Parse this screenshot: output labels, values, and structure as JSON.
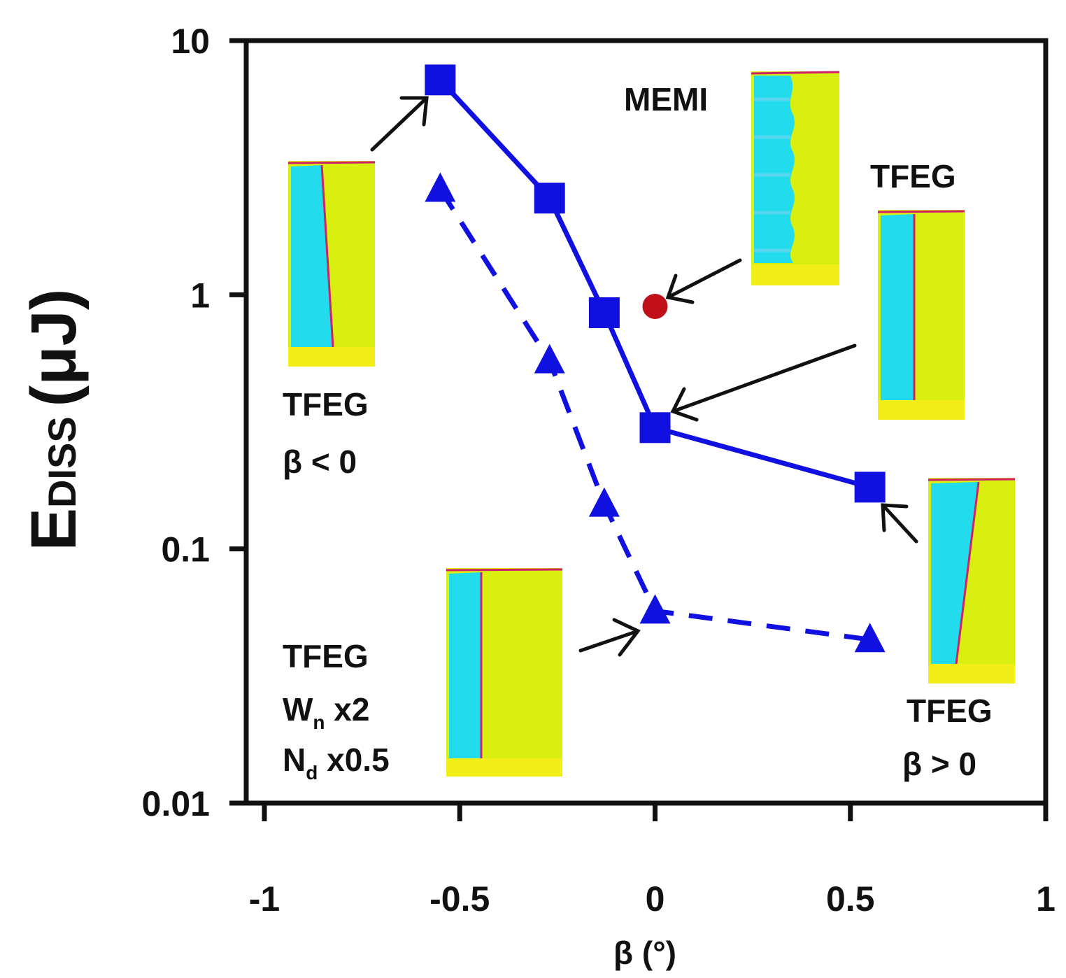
{
  "chart_data": {
    "type": "line",
    "x_scale": "linear",
    "y_scale": "log",
    "xlim": [
      -1,
      1
    ],
    "ylim": [
      0.01,
      10
    ],
    "x_ticks": [
      -1,
      -0.5,
      0,
      0.5,
      1
    ],
    "x_tick_labels": [
      "-1",
      "-0.5",
      "0",
      "0.5",
      "1"
    ],
    "y_ticks": [
      0.01,
      0.1,
      1,
      10
    ],
    "y_tick_labels": [
      "0.01",
      "0.1",
      "1",
      "10"
    ],
    "xlabel": "β (°)",
    "ylabel": {
      "main": "E",
      "sub": "DISS",
      "unit": "(μJ)"
    },
    "grid": false,
    "colors": {
      "series_blue": "#1010e0",
      "memi_red": "#c0101a",
      "cyan": "#22dcee",
      "lime": "#d8ef10",
      "yellow": "#f2ee18",
      "magenta": "#d0206a",
      "axis": "#111111"
    },
    "series": [
      {
        "name": "TFEG",
        "style": "solid",
        "marker": "square",
        "x": [
          -0.55,
          -0.27,
          -0.13,
          0.0,
          0.55
        ],
        "y": [
          7.0,
          2.4,
          0.85,
          0.3,
          0.175
        ]
      },
      {
        "name": "TFEG Wn x2 Nd x0.5",
        "style": "dashed",
        "marker": "triangle",
        "x": [
          -0.55,
          -0.27,
          -0.13,
          0.0,
          0.55
        ],
        "y": [
          2.6,
          0.55,
          0.15,
          0.057,
          0.044
        ]
      },
      {
        "name": "MEMI",
        "style": "none",
        "marker": "circle",
        "x": [
          0.0
        ],
        "y": [
          0.9
        ]
      }
    ],
    "annotations": {
      "top_left": [
        "TFEG",
        "β < 0"
      ],
      "memi": "MEMI",
      "right_top": "TFEG",
      "bottom_right": [
        "TFEG",
        "β > 0"
      ],
      "bottom_left": {
        "line1": "TFEG",
        "line2_main": "W",
        "line2_sub": "n",
        "line2_rest": " x2",
        "line3_main": "N",
        "line3_sub": "d",
        "line3_rest": " x0.5"
      }
    }
  }
}
